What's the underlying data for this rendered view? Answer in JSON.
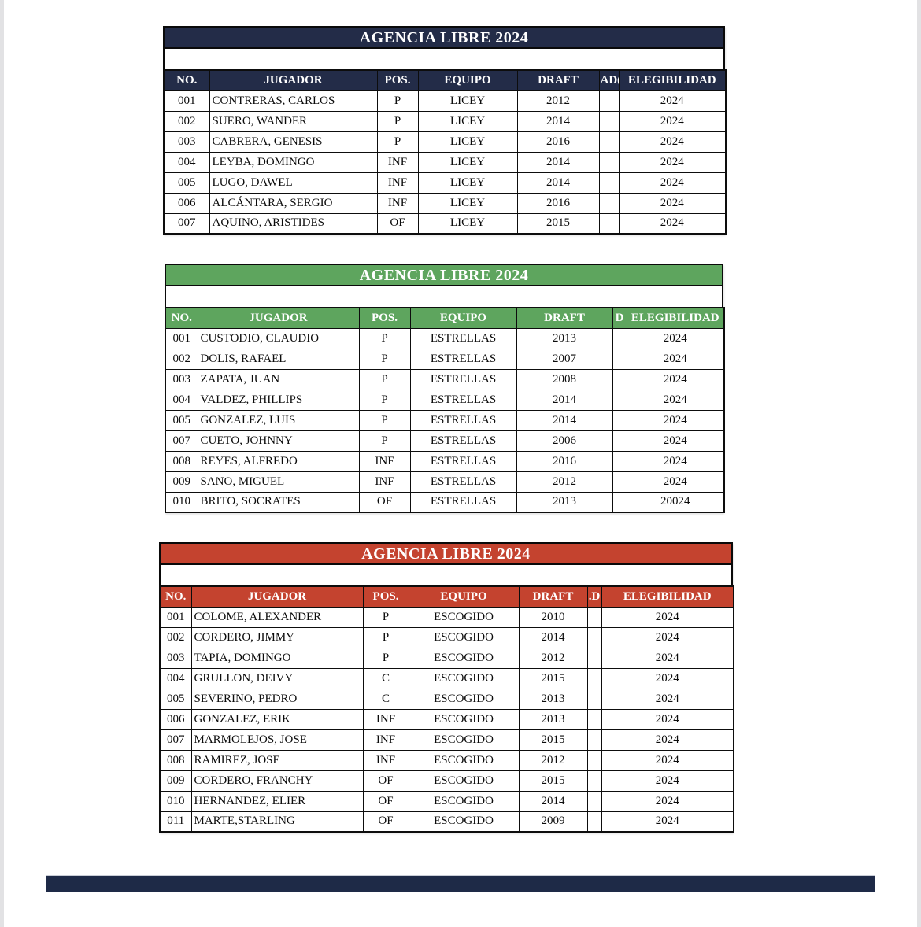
{
  "page": {
    "edge_strip_color": "#e2e2e4",
    "footer_bar_color": "#1e2a47"
  },
  "tables": [
    {
      "team": "LICEY",
      "title": "AGENCIA LIBRE 2024",
      "accent": "#232c48",
      "columns": [
        "NO.",
        "JUGADOR",
        "POS.",
        "EQUIPO",
        "DRAFT",
        "AD(",
        "ELEGIBILIDAD"
      ],
      "rows": [
        [
          "001",
          "CONTRERAS, CARLOS",
          "P",
          "LICEY",
          "2012",
          "",
          "2024"
        ],
        [
          "002",
          "SUERO, WANDER",
          "P",
          "LICEY",
          "2014",
          "",
          "2024"
        ],
        [
          "003",
          "CABRERA, GENESIS",
          "P",
          "LICEY",
          "2016",
          "",
          "2024"
        ],
        [
          "004",
          "LEYBA, DOMINGO",
          "INF",
          "LICEY",
          "2014",
          "",
          "2024"
        ],
        [
          "005",
          "LUGO, DAWEL",
          "INF",
          "LICEY",
          "2014",
          "",
          "2024"
        ],
        [
          "006",
          "ALCÁNTARA, SERGIO",
          "INF",
          "LICEY",
          "2016",
          "",
          "2024"
        ],
        [
          "007",
          "AQUINO, ARISTIDES",
          "OF",
          "LICEY",
          "2015",
          "",
          "2024"
        ]
      ]
    },
    {
      "team": "ESTRELLAS",
      "title": "AGENCIA LIBRE 2024",
      "accent": "#5ea55e",
      "columns": [
        "NO.",
        "JUGADOR",
        "POS.",
        "EQUIPO",
        "DRAFT",
        "D",
        "ELEGIBILIDAD"
      ],
      "rows": [
        [
          "001",
          "CUSTODIO, CLAUDIO",
          "P",
          "ESTRELLAS",
          "2013",
          "",
          "2024"
        ],
        [
          "002",
          "DOLIS, RAFAEL",
          "P",
          "ESTRELLAS",
          "2007",
          "",
          "2024"
        ],
        [
          "003",
          "ZAPATA, JUAN",
          "P",
          "ESTRELLAS",
          "2008",
          "",
          "2024"
        ],
        [
          "004",
          "VALDEZ, PHILLIPS",
          "P",
          "ESTRELLAS",
          "2014",
          "",
          "2024"
        ],
        [
          "005",
          "GONZALEZ, LUIS",
          "P",
          "ESTRELLAS",
          "2014",
          "",
          "2024"
        ],
        [
          "007",
          "CUETO, JOHNNY",
          "P",
          "ESTRELLAS",
          "2006",
          "",
          "2024"
        ],
        [
          "008",
          "REYES, ALFREDO",
          "INF",
          "ESTRELLAS",
          "2016",
          "",
          "2024"
        ],
        [
          "009",
          "SANO, MIGUEL",
          "INF",
          "ESTRELLAS",
          "2012",
          "",
          "2024"
        ],
        [
          "010",
          "BRITO, SOCRATES",
          "OF",
          "ESTRELLAS",
          "2013",
          "",
          "20024"
        ]
      ]
    },
    {
      "team": "ESCOGIDO",
      "title": "AGENCIA LIBRE 2024",
      "accent": "#c4432f",
      "columns": [
        "NO.",
        "JUGADOR",
        "POS.",
        "EQUIPO",
        "DRAFT",
        ".D",
        "ELEGIBILIDAD"
      ],
      "rows": [
        [
          "001",
          "COLOME, ALEXANDER",
          "P",
          "ESCOGIDO",
          "2010",
          "",
          "2024"
        ],
        [
          "002",
          "CORDERO, JIMMY",
          "P",
          "ESCOGIDO",
          "2014",
          "",
          "2024"
        ],
        [
          "003",
          "TAPIA, DOMINGO",
          "P",
          "ESCOGIDO",
          "2012",
          "",
          "2024"
        ],
        [
          "004",
          "GRULLON, DEIVY",
          "C",
          "ESCOGIDO",
          "2015",
          "",
          "2024"
        ],
        [
          "005",
          "SEVERINO, PEDRO",
          "C",
          "ESCOGIDO",
          "2013",
          "",
          "2024"
        ],
        [
          "006",
          "GONZALEZ, ERIK",
          "INF",
          "ESCOGIDO",
          "2013",
          "",
          "2024"
        ],
        [
          "007",
          "MARMOLEJOS, JOSE",
          "INF",
          "ESCOGIDO",
          "2015",
          "",
          "2024"
        ],
        [
          "008",
          "RAMIREZ, JOSE",
          "INF",
          "ESCOGIDO",
          "2012",
          "",
          "2024"
        ],
        [
          "009",
          "CORDERO, FRANCHY",
          "OF",
          "ESCOGIDO",
          "2015",
          "",
          "2024"
        ],
        [
          "010",
          "HERNANDEZ, ELIER",
          "OF",
          "ESCOGIDO",
          "2014",
          "",
          "2024"
        ],
        [
          "011",
          "MARTE,STARLING",
          "OF",
          "ESCOGIDO",
          "2009",
          "",
          "2024"
        ]
      ]
    }
  ]
}
